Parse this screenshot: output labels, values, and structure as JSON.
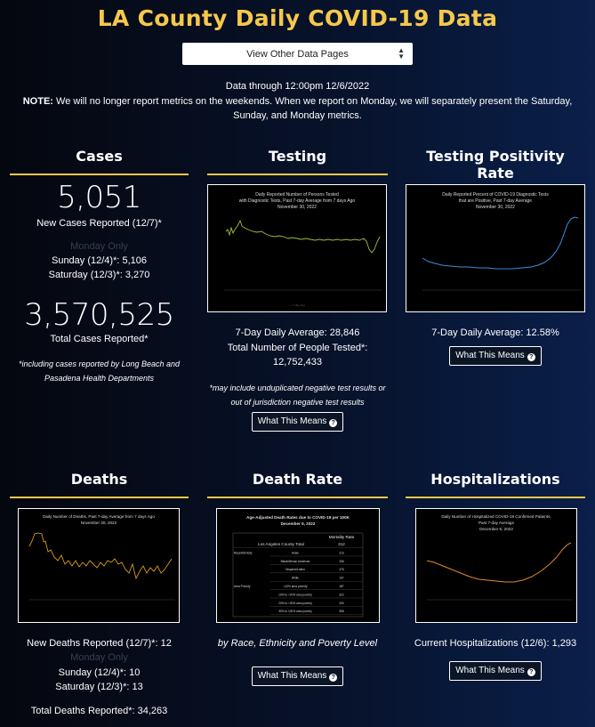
{
  "page_title": "LA County Daily COVID-19 Data",
  "nav": {
    "select_label": "View Other Data Pages"
  },
  "data_through": "Data through 12:00pm 12/6/2022",
  "note": {
    "label": "NOTE:",
    "text": " We will no longer report metrics on the weekends. When we report on Monday, we will separately present the Saturday, Sunday, and Monday metrics."
  },
  "cases": {
    "heading": "Cases",
    "new_value": "5,051",
    "new_label": "New Cases Reported (12/7)*",
    "monday_only": "Monday Only",
    "sunday": "Sunday (12/4)*: 5,106",
    "saturday": "Saturday (12/3)*: 3,270",
    "total_value": "3,570,525",
    "total_label": "Total Cases Reported*",
    "footnote": "*including cases reported by Long Beach and Pasadena Health Departments"
  },
  "testing": {
    "heading": "Testing",
    "chart_title": "Daily Reported Number of Persons Tested with Diagnostic Tests, Past 7-day Average from 7 days Ago November 30, 2022",
    "avg": "7-Day Daily Average: 28,846",
    "total_label": "Total Number of People Tested*:",
    "total_value": "12,752,433",
    "footnote": "*may include unduplicated negative test results or out of jurisdiction negative test results",
    "button": "What This Means"
  },
  "positivity": {
    "heading": "Testing Positivity Rate",
    "chart_title": "Daily Reported Percent of COVID-19 Diagnostic Tests that are Positive, Past 7-day Average November 30, 2022",
    "avg": "7-Day Daily Average: 12.58%",
    "button": "What This Means"
  },
  "deaths": {
    "heading": "Deaths",
    "chart_title": "Daily Number of Deaths, Past 7-day Average from 7 days Ago November 30, 2022",
    "new_label": "New Deaths Reported (12/7)*: 12",
    "monday_only": "Monday Only",
    "sunday": "Sunday (12/4)*: 10",
    "saturday": "Saturday (12/3)*: 13",
    "total": "Total Deaths Reported*: 34,263"
  },
  "death_rate": {
    "heading": "Death Rate",
    "chart_title": "Age-Adjusted Death Rates due to COVID-19 per 100K December 6, 2022",
    "subtitle": "by Race, Ethnicity and Poverty Level",
    "button": "What This Means",
    "table_header": "Mortality Rate",
    "table_rows": [
      [
        "Los Angeles County Total",
        "",
        "312"
      ],
      [
        "Race/Ethnicity",
        "Asian",
        "213"
      ],
      [
        "",
        "Black/African American",
        "336"
      ],
      [
        "",
        "Hispanic/Latino",
        "476"
      ],
      [
        "",
        "White",
        "197"
      ],
      [
        "Area Poverty",
        "<10% area poverty",
        "187"
      ],
      [
        "",
        "10% to <20% area poverty",
        "322"
      ],
      [
        "",
        "20% to <30% area poverty",
        "430"
      ],
      [
        "",
        "30% to 100% area poverty",
        "558"
      ]
    ]
  },
  "hospitalizations": {
    "heading": "Hospitalizations",
    "chart_title": "Daily Number of Hospitalized COVID-19 Confirmed Patients, Past 7-day Average December 6, 2022",
    "current": "Current Hospitalizations (12/6): 1,293",
    "button": "What This Means"
  },
  "colors": {
    "accent": "#f5c84c",
    "testing_line": "#9dc13c",
    "positivity_line": "#3a8fd8",
    "deaths_line": "#d79a1a",
    "hosp_line": "#e08a2c"
  }
}
